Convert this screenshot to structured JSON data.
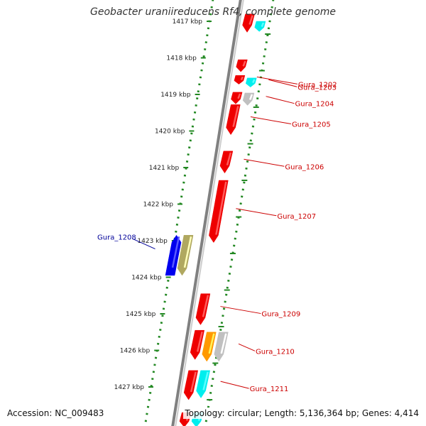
{
  "title": "Geobacter uraniireducens Rf4, complete genome",
  "accession": "Accession: NC_009483",
  "summary": "Topology: circular; Length: 5,136,364 bp; Genes: 4,414",
  "ticks": [
    {
      "pos": 1417,
      "label": "1417 kbp"
    },
    {
      "pos": 1418,
      "label": "1418 kbp"
    },
    {
      "pos": 1419,
      "label": "1419 kbp"
    },
    {
      "pos": 1420,
      "label": "1420 kbp"
    },
    {
      "pos": 1421,
      "label": "1421 kbp"
    },
    {
      "pos": 1422,
      "label": "1422 kbp"
    },
    {
      "pos": 1423,
      "label": "1423 kbp"
    },
    {
      "pos": 1424,
      "label": "1424 kbp"
    },
    {
      "pos": 1425,
      "label": "1425 kbp"
    },
    {
      "pos": 1426,
      "label": "1426 kbp"
    },
    {
      "pos": 1427,
      "label": "1427 kbp"
    }
  ],
  "genes": [
    {
      "start": 1416.8,
      "end": 1417.3,
      "lane": 0,
      "color": "#ee0000",
      "label": ""
    },
    {
      "start": 1417.0,
      "end": 1417.28,
      "lane": 1,
      "color": "#00eeee",
      "label": ""
    },
    {
      "start": 1418.05,
      "end": 1418.38,
      "lane": 0,
      "color": "#ee0000",
      "label": ""
    },
    {
      "start": 1418.48,
      "end": 1418.72,
      "lane": 0,
      "color": "#ee0000",
      "label": "Gura_1202"
    },
    {
      "start": 1418.55,
      "end": 1418.8,
      "lane": 1,
      "color": "#00eeee",
      "label": "Gura_1203"
    },
    {
      "start": 1418.94,
      "end": 1419.26,
      "lane": 0,
      "color": "#ee0000",
      "label": ""
    },
    {
      "start": 1418.96,
      "end": 1419.3,
      "lane": 1,
      "color": "#c0c0c0",
      "label": "Gura_1204"
    },
    {
      "start": 1419.28,
      "end": 1420.1,
      "lane": 0,
      "color": "#ee0000",
      "label": "Gura_1205"
    },
    {
      "start": 1420.55,
      "end": 1421.15,
      "lane": 0,
      "color": "#ee0000",
      "label": "Gura_1206"
    },
    {
      "start": 1421.35,
      "end": 1423.05,
      "lane": 0,
      "color": "#ee0000",
      "label": "Gura_1207"
    },
    {
      "start": 1422.85,
      "end": 1423.95,
      "lane": -1,
      "color": "#b0a860",
      "label": ""
    },
    {
      "start": 1422.85,
      "end": 1423.95,
      "lane": -2,
      "color": "#0000ee",
      "label": "Gura_1208"
    },
    {
      "start": 1424.45,
      "end": 1425.3,
      "lane": 0,
      "color": "#ee0000",
      "label": "Gura_1209"
    },
    {
      "start": 1425.45,
      "end": 1426.25,
      "lane": 0,
      "color": "#ee0000",
      "label": ""
    },
    {
      "start": 1425.5,
      "end": 1426.3,
      "lane": 1,
      "color": "#ff9900",
      "label": ""
    },
    {
      "start": 1425.5,
      "end": 1426.3,
      "lane": 2,
      "color": "#c0c0c0",
      "label": "Gura_1210"
    },
    {
      "start": 1426.55,
      "end": 1427.35,
      "lane": 0,
      "color": "#ee0000",
      "label": ""
    },
    {
      "start": 1426.55,
      "end": 1427.3,
      "lane": 1,
      "color": "#00eeee",
      "label": "Gura_1211"
    },
    {
      "start": 1427.7,
      "end": 1428.1,
      "lane": 0,
      "color": "#ee0000",
      "label": ""
    },
    {
      "start": 1427.7,
      "end": 1428.1,
      "lane": 1,
      "color": "#00eeee",
      "label": ""
    }
  ],
  "colors": {
    "backbone": "#808080",
    "dots": "#228822",
    "forward_label": "#cc0000",
    "reverse_label": "#000099"
  }
}
